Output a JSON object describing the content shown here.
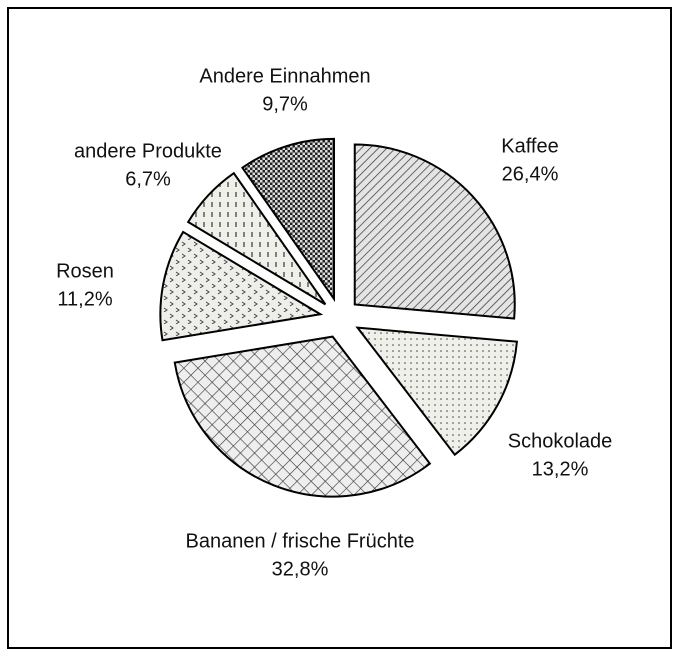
{
  "chart_data": {
    "type": "pie",
    "categories": [
      "Kaffee",
      "Schokolade",
      "Bananen / frische Früchte",
      "Rosen",
      "andere Produkte",
      "Andere Einnahmen"
    ],
    "values": [
      26.4,
      13.2,
      32.8,
      11.2,
      6.7,
      9.7
    ],
    "value_labels": [
      "26,4%",
      "13,2%",
      "32,8%",
      "11,2%",
      "6,7%",
      "9,7%"
    ]
  }
}
